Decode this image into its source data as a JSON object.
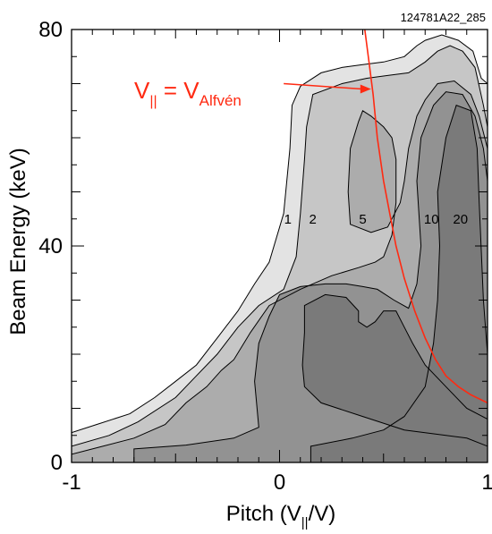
{
  "chart_data": {
    "type": "contour",
    "figure_id": "124781A22_285",
    "xlabel": {
      "main": "Pitch (V",
      "sub": "||",
      "end": "/V)"
    },
    "ylabel": "Beam Energy (keV)",
    "xlim": [
      -1,
      1
    ],
    "ylim": [
      0,
      80
    ],
    "x_ticks": [
      {
        "value": -1,
        "label": "-1"
      },
      {
        "value": 0,
        "label": "0"
      },
      {
        "value": 1,
        "label": "1"
      }
    ],
    "y_ticks": [
      {
        "value": 0,
        "label": "0"
      },
      {
        "value": 40,
        "label": "40"
      },
      {
        "value": 80,
        "label": "80"
      }
    ],
    "fill_colors": [
      "#e3e3e3",
      "#c6c6c6",
      "#acacac",
      "#929292",
      "#7a7a7a"
    ],
    "contours": [
      {
        "level": 1,
        "label": "1",
        "label_pos": [
          0.04,
          45
        ],
        "points": [
          [
            -1,
            5.5
          ],
          [
            -0.88,
            7
          ],
          [
            -0.72,
            9
          ],
          [
            -0.6,
            12
          ],
          [
            -0.5,
            15
          ],
          [
            -0.4,
            18
          ],
          [
            -0.3,
            23
          ],
          [
            -0.2,
            28
          ],
          [
            -0.12,
            33
          ],
          [
            -0.05,
            37
          ],
          [
            0.02,
            46
          ],
          [
            0.05,
            58
          ],
          [
            0.06,
            66
          ],
          [
            0.1,
            69.5
          ],
          [
            0.2,
            72
          ],
          [
            0.3,
            73
          ],
          [
            0.4,
            73.5
          ],
          [
            0.5,
            74
          ],
          [
            0.6,
            75
          ],
          [
            0.66,
            77
          ],
          [
            0.7,
            78
          ],
          [
            0.78,
            79
          ],
          [
            0.86,
            78
          ],
          [
            0.93,
            76
          ],
          [
            0.97,
            71
          ],
          [
            1,
            70
          ],
          [
            1,
            0
          ],
          [
            -1,
            0
          ]
        ]
      },
      {
        "level": 2,
        "label": "2",
        "label_pos": [
          0.16,
          45
        ],
        "points": [
          [
            -1,
            3
          ],
          [
            -0.82,
            5
          ],
          [
            -0.68,
            7.5
          ],
          [
            -0.5,
            12
          ],
          [
            -0.4,
            16
          ],
          [
            -0.3,
            20
          ],
          [
            -0.2,
            25
          ],
          [
            -0.1,
            29
          ],
          [
            0.02,
            32
          ],
          [
            0.08,
            38
          ],
          [
            0.1,
            46
          ],
          [
            0.12,
            56
          ],
          [
            0.13,
            62
          ],
          [
            0.16,
            68
          ],
          [
            0.3,
            70
          ],
          [
            0.42,
            71
          ],
          [
            0.52,
            71.5
          ],
          [
            0.62,
            72
          ],
          [
            0.7,
            74
          ],
          [
            0.76,
            76
          ],
          [
            0.82,
            77
          ],
          [
            0.88,
            76
          ],
          [
            0.94,
            73
          ],
          [
            0.98,
            66
          ],
          [
            1,
            62
          ],
          [
            1,
            0
          ],
          [
            -1,
            0
          ]
        ]
      },
      {
        "level": 5,
        "label": "5",
        "label_pos": [
          0.4,
          45
        ],
        "points": [
          [
            -1,
            1.5
          ],
          [
            -0.85,
            3
          ],
          [
            -0.7,
            4.5
          ],
          [
            -0.55,
            7
          ],
          [
            -0.45,
            11
          ],
          [
            -0.35,
            14
          ],
          [
            -0.28,
            17
          ],
          [
            -0.22,
            19
          ],
          [
            -0.14,
            24
          ],
          [
            -0.05,
            29
          ],
          [
            0.1,
            32
          ],
          [
            0.25,
            34.5
          ],
          [
            0.38,
            36
          ],
          [
            0.46,
            37
          ],
          [
            0.5,
            38
          ],
          [
            0.54,
            42
          ],
          [
            0.56,
            48
          ],
          [
            0.56,
            56
          ],
          [
            0.54,
            60
          ],
          [
            0.5,
            62
          ],
          [
            0.44,
            64
          ],
          [
            0.4,
            65
          ],
          [
            0.38,
            63
          ],
          [
            0.34,
            58
          ],
          [
            0.33,
            50
          ],
          [
            0.34,
            44
          ],
          [
            0.44,
            42.5
          ],
          [
            0.52,
            43.5
          ],
          [
            0.58,
            48
          ],
          [
            0.6,
            52
          ],
          [
            0.62,
            58
          ],
          [
            0.66,
            64
          ],
          [
            0.7,
            67
          ],
          [
            0.76,
            70
          ],
          [
            0.84,
            70.5
          ],
          [
            0.92,
            68
          ],
          [
            0.96,
            64
          ],
          [
            1,
            58
          ],
          [
            1,
            0
          ],
          [
            -1,
            0
          ]
        ]
      },
      {
        "level": 10,
        "label": "10",
        "label_pos": [
          0.73,
          45
        ],
        "points": [
          [
            -0.7,
            2.5
          ],
          [
            -0.45,
            3.2
          ],
          [
            -0.22,
            4.5
          ],
          [
            -0.1,
            6.5
          ],
          [
            -0.12,
            15
          ],
          [
            -0.1,
            22
          ],
          [
            -0.05,
            27
          ],
          [
            0,
            31
          ],
          [
            0.1,
            32.5
          ],
          [
            0.22,
            33
          ],
          [
            0.32,
            33
          ],
          [
            0.4,
            32.5
          ],
          [
            0.47,
            32
          ],
          [
            0.55,
            30
          ],
          [
            0.62,
            28.5
          ],
          [
            0.66,
            33
          ],
          [
            0.68,
            40
          ],
          [
            0.66,
            52
          ],
          [
            0.68,
            60
          ],
          [
            0.74,
            66
          ],
          [
            0.8,
            68.5
          ],
          [
            0.88,
            68
          ],
          [
            0.94,
            64
          ],
          [
            0.98,
            58
          ],
          [
            1,
            52
          ],
          [
            1,
            0
          ],
          [
            -0.7,
            0
          ]
        ]
      },
      {
        "level": 20,
        "label": "20",
        "label_pos": [
          0.87,
          45
        ],
        "points": [
          [
            0.15,
            3
          ],
          [
            0.35,
            4.5
          ],
          [
            0.5,
            6
          ],
          [
            0.6,
            8.5
          ],
          [
            0.7,
            14
          ],
          [
            0.74,
            22
          ],
          [
            0.76,
            30
          ],
          [
            0.77,
            40
          ],
          [
            0.76,
            50
          ],
          [
            0.8,
            60
          ],
          [
            0.85,
            66
          ],
          [
            0.92,
            65
          ],
          [
            0.95,
            58
          ],
          [
            0.96,
            48
          ],
          [
            0.98,
            30
          ],
          [
            1,
            20
          ],
          [
            1,
            0
          ],
          [
            0.15,
            0
          ]
        ]
      }
    ],
    "inner_region": {
      "level_label": "",
      "points": [
        [
          0.12,
          29
        ],
        [
          0.22,
          31
        ],
        [
          0.32,
          30.5
        ],
        [
          0.38,
          28
        ],
        [
          0.38,
          26
        ],
        [
          0.42,
          25
        ],
        [
          0.46,
          26
        ],
        [
          0.5,
          28
        ],
        [
          0.56,
          28
        ],
        [
          0.6,
          25
        ],
        [
          0.64,
          22
        ],
        [
          0.7,
          18
        ],
        [
          0.8,
          14
        ],
        [
          0.9,
          10
        ],
        [
          1,
          8
        ],
        [
          1,
          3
        ],
        [
          0.9,
          4.5
        ],
        [
          0.8,
          5
        ],
        [
          0.6,
          6
        ],
        [
          0.4,
          8.5
        ],
        [
          0.2,
          11
        ],
        [
          0.12,
          14
        ],
        [
          0.11,
          18
        ],
        [
          0.12,
          24
        ]
      ]
    },
    "alfven_curve": {
      "color": "#ff2a12",
      "points": [
        [
          0.41,
          80
        ],
        [
          0.43,
          74
        ],
        [
          0.45,
          68
        ],
        [
          0.47,
          60
        ],
        [
          0.5,
          52
        ],
        [
          0.53,
          46
        ],
        [
          0.56,
          40
        ],
        [
          0.6,
          34
        ],
        [
          0.65,
          28
        ],
        [
          0.7,
          23
        ],
        [
          0.75,
          19
        ],
        [
          0.8,
          16
        ],
        [
          0.86,
          14
        ],
        [
          0.92,
          12.5
        ],
        [
          1,
          11
        ]
      ]
    },
    "annotation": {
      "text_main": "V",
      "text_sub": "||",
      "text_equals": " = V",
      "text_sub2": "Alfvén",
      "color": "#ff2a12",
      "arrow_from": [
        0.02,
        70
      ],
      "arrow_to": [
        0.44,
        69
      ]
    }
  }
}
